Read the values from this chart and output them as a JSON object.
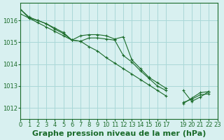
{
  "title": "Graphe pression niveau de la mer (hPa)",
  "bg_color": "#d8f0f0",
  "grid_color": "#aad8d8",
  "line_color": "#1a6b2a",
  "marker_color": "#1a6b2a",
  "xlim": [
    0,
    23
  ],
  "ylim": [
    1011.5,
    1016.8
  ],
  "yticks": [
    1012,
    1013,
    1014,
    1015,
    1016
  ],
  "xticks": [
    0,
    1,
    2,
    3,
    4,
    5,
    6,
    7,
    8,
    9,
    10,
    11,
    12,
    13,
    14,
    15,
    16,
    17,
    19,
    20,
    21,
    22,
    23
  ],
  "series": [
    [
      1016.3,
      1016.1,
      1015.9,
      1015.7,
      1015.5,
      1015.3,
      1015.1,
      1015.05,
      1015.2,
      1015.2,
      1015.15,
      1015.1,
      1014.4,
      1014.1,
      1013.7,
      1013.35,
      1013.0,
      1012.8,
      null,
      1012.25,
      1012.4,
      1012.6,
      1012.65
    ],
    [
      1016.5,
      1016.15,
      1016.0,
      1015.85,
      1015.6,
      1015.4,
      1015.1,
      1015.3,
      1015.35,
      1015.35,
      1015.3,
      1015.15,
      1015.25,
      1014.2,
      1013.8,
      1013.4,
      1013.15,
      1012.9,
      null,
      1012.8,
      1012.3,
      1012.5,
      1012.75
    ],
    [
      1016.5,
      1016.1,
      1016.0,
      1015.85,
      1015.65,
      1015.45,
      1015.1,
      1015.05,
      1014.8,
      1014.6,
      1014.3,
      1014.05,
      1013.8,
      1013.55,
      1013.3,
      1013.05,
      1012.8,
      1012.55,
      null,
      1012.2,
      1012.45,
      1012.7,
      1012.75
    ]
  ],
  "xlabel_fontsize": 8,
  "tick_fontsize": 6
}
